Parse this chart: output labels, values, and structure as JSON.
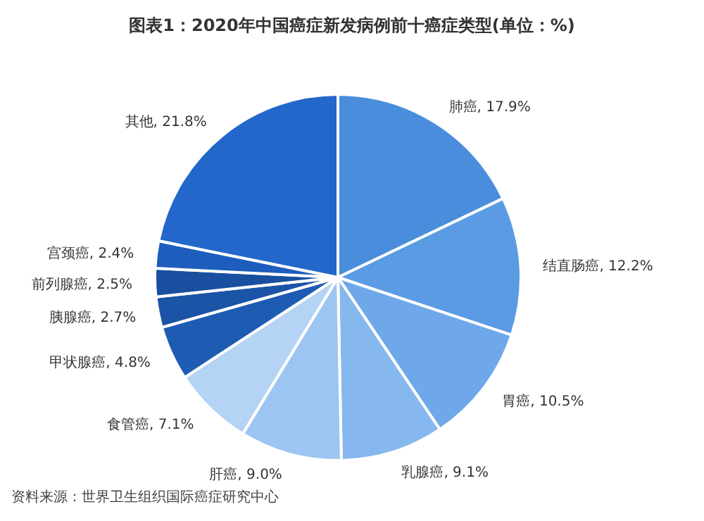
{
  "chart_data": {
    "type": "pie",
    "title": "图表1：2020年中国癌症新发病例前十癌症类型(单位：%)",
    "categories": [
      "肺癌",
      "结直肠癌",
      "胃癌",
      "乳腺癌",
      "肝癌",
      "食管癌",
      "甲状腺癌",
      "胰腺癌",
      "前列腺癌",
      "宫颈癌",
      "其他"
    ],
    "values": [
      17.9,
      12.2,
      10.5,
      9.1,
      9.0,
      7.1,
      4.8,
      2.7,
      2.5,
      2.4,
      21.8
    ],
    "value_labels": [
      "17.9%",
      "12.2%",
      "10.5%",
      "9.1%",
      "9.0%",
      "7.1%",
      "4.8%",
      "2.7%",
      "2.5%",
      "2.4%",
      "21.8%"
    ],
    "colors": [
      "#4a8ddc",
      "#5b9be3",
      "#6ea8ea",
      "#86b7ef",
      "#9dc5f2",
      "#b4d3f5",
      "#1e5cb3",
      "#1b54a6",
      "#18509f",
      "#1d5dbd",
      "#2267c9"
    ],
    "annotations": [
      "资料来源：世界卫生组织国际癌症研究中心"
    ]
  }
}
